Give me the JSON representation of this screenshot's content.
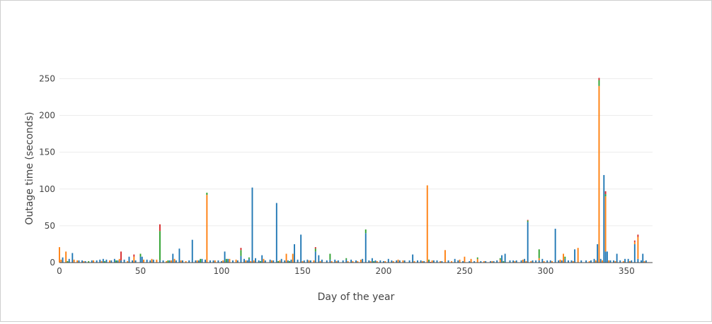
{
  "chart_data": {
    "type": "bar",
    "barmode": "stack",
    "xlabel": "Day of the year",
    "ylabel": "Outage time (seconds)",
    "xlim": [
      0,
      366
    ],
    "ylim": [
      0,
      260
    ],
    "xticks": [
      0,
      50,
      100,
      150,
      200,
      250,
      300,
      350
    ],
    "yticks": [
      0,
      50,
      100,
      150,
      200,
      250
    ],
    "grid": true,
    "legend": "none",
    "series": [
      {
        "color": "#1f77b4",
        "points": [
          [
            2,
            7
          ],
          [
            6,
            5
          ],
          [
            8,
            13
          ],
          [
            12,
            3
          ],
          [
            14,
            3
          ],
          [
            16,
            2
          ],
          [
            20,
            3
          ],
          [
            23,
            3
          ],
          [
            25,
            4
          ],
          [
            27,
            5
          ],
          [
            29,
            4
          ],
          [
            32,
            3
          ],
          [
            34,
            5
          ],
          [
            36,
            3
          ],
          [
            38,
            3
          ],
          [
            40,
            4
          ],
          [
            43,
            8
          ],
          [
            45,
            3
          ],
          [
            47,
            3
          ],
          [
            50,
            8
          ],
          [
            51,
            8
          ],
          [
            54,
            4
          ],
          [
            56,
            3
          ],
          [
            58,
            4
          ],
          [
            62,
            3
          ],
          [
            64,
            3
          ],
          [
            68,
            3
          ],
          [
            70,
            12
          ],
          [
            72,
            3
          ],
          [
            74,
            19
          ],
          [
            76,
            3
          ],
          [
            80,
            3
          ],
          [
            82,
            31
          ],
          [
            84,
            3
          ],
          [
            86,
            3
          ],
          [
            88,
            5
          ],
          [
            90,
            4
          ],
          [
            93,
            3
          ],
          [
            95,
            3
          ],
          [
            98,
            3
          ],
          [
            100,
            2
          ],
          [
            102,
            15
          ],
          [
            104,
            5
          ],
          [
            107,
            3
          ],
          [
            110,
            3
          ],
          [
            112,
            9
          ],
          [
            114,
            5
          ],
          [
            116,
            3
          ],
          [
            117,
            5
          ],
          [
            119,
            102
          ],
          [
            121,
            6
          ],
          [
            123,
            3
          ],
          [
            125,
            10
          ],
          [
            127,
            3
          ],
          [
            130,
            4
          ],
          [
            132,
            3
          ],
          [
            134,
            81
          ],
          [
            137,
            5
          ],
          [
            139,
            3
          ],
          [
            141,
            3
          ],
          [
            143,
            4
          ],
          [
            145,
            25
          ],
          [
            147,
            4
          ],
          [
            149,
            38
          ],
          [
            151,
            3
          ],
          [
            153,
            4
          ],
          [
            155,
            3
          ],
          [
            158,
            15
          ],
          [
            160,
            10
          ],
          [
            162,
            4
          ],
          [
            165,
            3
          ],
          [
            167,
            4
          ],
          [
            170,
            4
          ],
          [
            172,
            3
          ],
          [
            175,
            3
          ],
          [
            177,
            4
          ],
          [
            180,
            4
          ],
          [
            183,
            3
          ],
          [
            187,
            5
          ],
          [
            189,
            40
          ],
          [
            191,
            3
          ],
          [
            193,
            6
          ],
          [
            195,
            3
          ],
          [
            198,
            3
          ],
          [
            200,
            2
          ],
          [
            203,
            5
          ],
          [
            205,
            3
          ],
          [
            208,
            3
          ],
          [
            210,
            3
          ],
          [
            213,
            3
          ],
          [
            216,
            3
          ],
          [
            218,
            11
          ],
          [
            221,
            3
          ],
          [
            223,
            3
          ],
          [
            225,
            2
          ],
          [
            228,
            2
          ],
          [
            231,
            3
          ],
          [
            233,
            3
          ],
          [
            236,
            2
          ],
          [
            240,
            3
          ],
          [
            244,
            5
          ],
          [
            246,
            3
          ],
          [
            249,
            2
          ],
          [
            253,
            2
          ],
          [
            256,
            2
          ],
          [
            260,
            2
          ],
          [
            263,
            2
          ],
          [
            266,
            2
          ],
          [
            268,
            2
          ],
          [
            270,
            3
          ],
          [
            273,
            10
          ],
          [
            275,
            12
          ],
          [
            278,
            3
          ],
          [
            280,
            3
          ],
          [
            282,
            3
          ],
          [
            285,
            3
          ],
          [
            287,
            5
          ],
          [
            289,
            55
          ],
          [
            292,
            3
          ],
          [
            294,
            3
          ],
          [
            296,
            3
          ],
          [
            298,
            5
          ],
          [
            301,
            3
          ],
          [
            303,
            3
          ],
          [
            306,
            46
          ],
          [
            308,
            3
          ],
          [
            310,
            3
          ],
          [
            312,
            5
          ],
          [
            314,
            3
          ],
          [
            316,
            3
          ],
          [
            318,
            18
          ],
          [
            322,
            3
          ],
          [
            325,
            3
          ],
          [
            328,
            3
          ],
          [
            330,
            5
          ],
          [
            332,
            25
          ],
          [
            334,
            5
          ],
          [
            336,
            119
          ],
          [
            337,
            15
          ],
          [
            338,
            15
          ],
          [
            340,
            3
          ],
          [
            342,
            3
          ],
          [
            344,
            12
          ],
          [
            346,
            3
          ],
          [
            349,
            5
          ],
          [
            351,
            5
          ],
          [
            353,
            3
          ],
          [
            355,
            25
          ],
          [
            357,
            5
          ],
          [
            359,
            3
          ],
          [
            360,
            12
          ],
          [
            362,
            3
          ]
        ]
      },
      {
        "color": "#ff7f0e",
        "points": [
          [
            0,
            21
          ],
          [
            1,
            4
          ],
          [
            4,
            15
          ],
          [
            9,
            4
          ],
          [
            11,
            3
          ],
          [
            15,
            2
          ],
          [
            21,
            3
          ],
          [
            26,
            2
          ],
          [
            31,
            3
          ],
          [
            37,
            5
          ],
          [
            42,
            2
          ],
          [
            46,
            8
          ],
          [
            52,
            4
          ],
          [
            57,
            5
          ],
          [
            60,
            4
          ],
          [
            66,
            2
          ],
          [
            69,
            3
          ],
          [
            71,
            5
          ],
          [
            75,
            3
          ],
          [
            78,
            2
          ],
          [
            85,
            3
          ],
          [
            91,
            92
          ],
          [
            96,
            3
          ],
          [
            101,
            3
          ],
          [
            105,
            5
          ],
          [
            109,
            4
          ],
          [
            115,
            3
          ],
          [
            118,
            2
          ],
          [
            120,
            3
          ],
          [
            126,
            5
          ],
          [
            131,
            3
          ],
          [
            136,
            3
          ],
          [
            140,
            12
          ],
          [
            144,
            12
          ],
          [
            150,
            2
          ],
          [
            154,
            3
          ],
          [
            157,
            3
          ],
          [
            161,
            2
          ],
          [
            168,
            2
          ],
          [
            171,
            2
          ],
          [
            178,
            2
          ],
          [
            181,
            2
          ],
          [
            184,
            2
          ],
          [
            186,
            4
          ],
          [
            192,
            2
          ],
          [
            196,
            2
          ],
          [
            201,
            2
          ],
          [
            206,
            2
          ],
          [
            209,
            4
          ],
          [
            212,
            3
          ],
          [
            219,
            2
          ],
          [
            224,
            2
          ],
          [
            227,
            105
          ],
          [
            230,
            3
          ],
          [
            235,
            2
          ],
          [
            238,
            17
          ],
          [
            242,
            2
          ],
          [
            247,
            4
          ],
          [
            250,
            8
          ],
          [
            254,
            5
          ],
          [
            258,
            5
          ],
          [
            262,
            2
          ],
          [
            267,
            2
          ],
          [
            272,
            4
          ],
          [
            281,
            2
          ],
          [
            286,
            4
          ],
          [
            288,
            2
          ],
          [
            291,
            2
          ],
          [
            296,
            3
          ],
          [
            299,
            2
          ],
          [
            304,
            2
          ],
          [
            309,
            4
          ],
          [
            311,
            12
          ],
          [
            317,
            2
          ],
          [
            320,
            20
          ],
          [
            327,
            2
          ],
          [
            331,
            3
          ],
          [
            333,
            240
          ],
          [
            335,
            3
          ],
          [
            337,
            75
          ],
          [
            339,
            3
          ],
          [
            343,
            2
          ],
          [
            348,
            2
          ],
          [
            352,
            2
          ],
          [
            355,
            3
          ],
          [
            357,
            30
          ],
          [
            361,
            2
          ]
        ]
      },
      {
        "color": "#2ca02c",
        "points": [
          [
            5,
            2
          ],
          [
            18,
            2
          ],
          [
            28,
            2
          ],
          [
            35,
            3
          ],
          [
            50,
            4
          ],
          [
            62,
            40
          ],
          [
            67,
            3
          ],
          [
            87,
            5
          ],
          [
            91,
            3
          ],
          [
            103,
            5
          ],
          [
            112,
            8
          ],
          [
            117,
            2
          ],
          [
            124,
            2
          ],
          [
            135,
            2
          ],
          [
            142,
            2
          ],
          [
            158,
            4
          ],
          [
            167,
            8
          ],
          [
            177,
            2
          ],
          [
            189,
            5
          ],
          [
            194,
            2
          ],
          [
            228,
            2
          ],
          [
            258,
            2
          ],
          [
            272,
            2
          ],
          [
            274,
            2
          ],
          [
            289,
            2
          ],
          [
            296,
            12
          ],
          [
            312,
            3
          ],
          [
            333,
            8
          ],
          [
            337,
            3
          ]
        ]
      },
      {
        "color": "#d62728",
        "points": [
          [
            38,
            12
          ],
          [
            46,
            3
          ],
          [
            62,
            9
          ],
          [
            112,
            3
          ],
          [
            158,
            2
          ],
          [
            229,
            1
          ],
          [
            289,
            1
          ],
          [
            333,
            3
          ],
          [
            337,
            4
          ],
          [
            355,
            2
          ],
          [
            357,
            3
          ]
        ]
      }
    ]
  }
}
